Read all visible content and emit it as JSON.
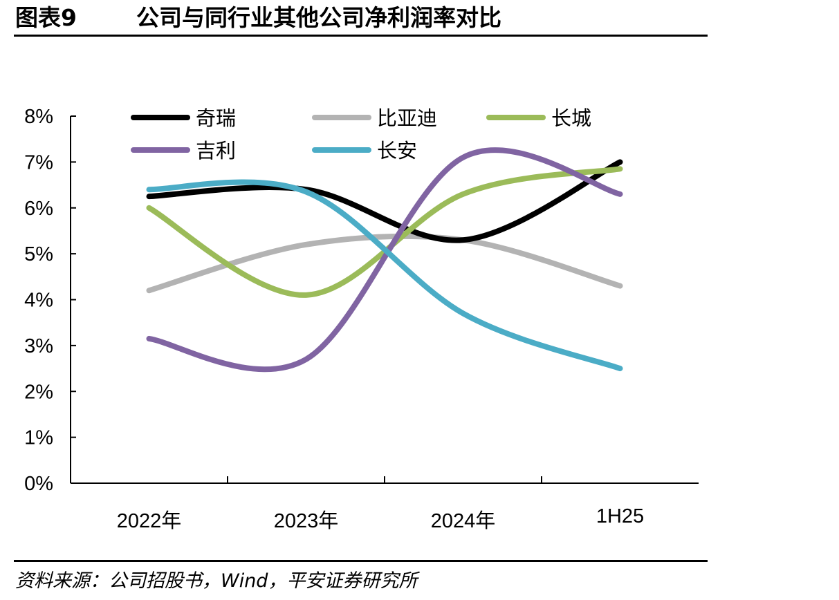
{
  "figure": {
    "number": "图表9",
    "title": "公司与同行业其他公司净利润率对比",
    "source": "资料来源：公司招股书，Wind，平安证券研究所"
  },
  "chart_data": {
    "type": "line",
    "title": "",
    "xlabel": "",
    "ylabel": "",
    "categories": [
      "2022年",
      "2023年",
      "2024年",
      "1H25"
    ],
    "y_ticks": [
      "0%",
      "1%",
      "2%",
      "3%",
      "4%",
      "5%",
      "6%",
      "7%",
      "8%"
    ],
    "ylim": [
      0,
      8
    ],
    "unit": "%",
    "smooth": true,
    "grid": false,
    "legend_position": "top",
    "series": [
      {
        "name": "奇瑞",
        "color": "#000000",
        "values": [
          6.25,
          6.4,
          5.3,
          7.0
        ]
      },
      {
        "name": "比亚迪",
        "color": "#b3b3b3",
        "values": [
          4.2,
          5.2,
          5.3,
          4.3
        ]
      },
      {
        "name": "长城",
        "color": "#9bbb59",
        "values": [
          6.0,
          4.1,
          6.3,
          6.85
        ]
      },
      {
        "name": "吉利",
        "color": "#8064a2",
        "values": [
          3.15,
          2.7,
          7.1,
          6.3
        ]
      },
      {
        "name": "长安",
        "color": "#4bacc6",
        "values": [
          6.4,
          6.35,
          3.7,
          2.5
        ]
      }
    ]
  }
}
